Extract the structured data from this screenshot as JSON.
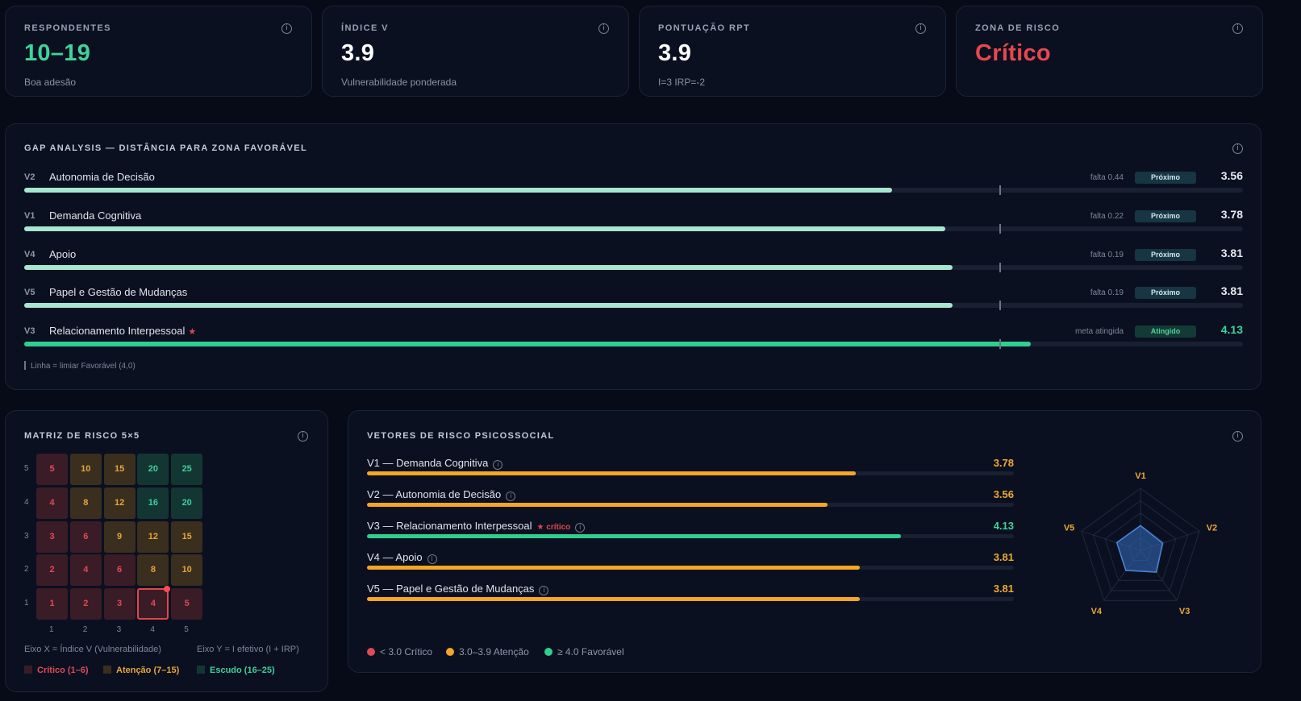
{
  "kpis": [
    {
      "label": "RESPONDENTES",
      "value": "10–19",
      "sub": "Boa adesão",
      "color": "#3fd39a"
    },
    {
      "label": "ÍNDICE V",
      "value": "3.9",
      "sub": "Vulnerabilidade ponderada",
      "color": "#ffffff"
    },
    {
      "label": "PONTUAÇÃO RPT",
      "value": "3.9",
      "sub": "I=3 IRP=-2",
      "color": "#ffffff"
    },
    {
      "label": "ZONA DE RISCO",
      "value": "Crítico",
      "sub": "",
      "color": "#e8474f"
    }
  ],
  "info_icon_glyph": "i",
  "gap": {
    "title": "GAP ANALYSIS — DISTÂNCIA PARA ZONA FAVORÁVEL",
    "threshold": 4.0,
    "max": 5.0,
    "rows": [
      {
        "code": "V2",
        "name": "Autonomia de Decisão",
        "critical": false,
        "miss": "falta 0.44",
        "badge": "Próximo",
        "score": "3.56",
        "value": 3.56,
        "ok": false
      },
      {
        "code": "V1",
        "name": "Demanda Cognitiva",
        "critical": false,
        "miss": "falta 0.22",
        "badge": "Próximo",
        "score": "3.78",
        "value": 3.78,
        "ok": false
      },
      {
        "code": "V4",
        "name": "Apoio",
        "critical": false,
        "miss": "falta 0.19",
        "badge": "Próximo",
        "score": "3.81",
        "value": 3.81,
        "ok": false
      },
      {
        "code": "V5",
        "name": "Papel e Gestão de Mudanças",
        "critical": false,
        "miss": "falta 0.19",
        "badge": "Próximo",
        "score": "3.81",
        "value": 3.81,
        "ok": false
      },
      {
        "code": "V3",
        "name": "Relacionamento Interpessoal",
        "critical": true,
        "miss": "meta atingida",
        "badge": "Atingido",
        "score": "4.13",
        "value": 4.13,
        "ok": true
      }
    ],
    "star": "★",
    "footnote": "Linha = limiar Favorável (4,0)"
  },
  "matrix": {
    "title": "MATRIZ DE RISCO 5×5",
    "selected": {
      "x": 4,
      "y": 1
    },
    "x_ticks": [
      "1",
      "2",
      "3",
      "4",
      "5"
    ],
    "y_ticks": [
      "5",
      "4",
      "3",
      "2",
      "1"
    ],
    "x_axis_label": "Eixo X = Índice V (Vulnerabilidade)",
    "y_axis_label": "Eixo Y = I efetivo (I + IRP)",
    "legend": [
      {
        "label": "Crítico (1–6)",
        "color": "#e04a54",
        "swatch": "#3a1c26"
      },
      {
        "label": "Atenção (7–15)",
        "color": "#e6a63a",
        "swatch": "#3a2e1e"
      },
      {
        "label": "Escudo (16–25)",
        "color": "#3fcf9a",
        "swatch": "#143633"
      }
    ]
  },
  "vectors": {
    "title": "VETORES DE RISCO PSICOSSOCIAL",
    "max": 5.0,
    "rows": [
      {
        "name": "V1 — Demanda Cognitiva",
        "crit_label": "",
        "score": "3.78",
        "value": 3.78,
        "ok": false
      },
      {
        "name": "V2 — Autonomia de Decisão",
        "crit_label": "",
        "score": "3.56",
        "value": 3.56,
        "ok": false
      },
      {
        "name": "V3 — Relacionamento Interpessoal",
        "crit_label": "★ crítico",
        "score": "4.13",
        "value": 4.13,
        "ok": true
      },
      {
        "name": "V4 — Apoio",
        "crit_label": "",
        "score": "3.81",
        "value": 3.81,
        "ok": false
      },
      {
        "name": "V5 — Papel e Gestão de Mudanças",
        "crit_label": "",
        "score": "3.81",
        "value": 3.81,
        "ok": false
      }
    ],
    "legend": [
      {
        "label": "< 3.0 Crítico",
        "color": "#e04a54"
      },
      {
        "label": "3.0–3.9 Atenção",
        "color": "#f5a623"
      },
      {
        "label": "≥ 4.0 Favorável",
        "color": "#2fcf8f"
      }
    ],
    "radar": {
      "axes": [
        "V1",
        "V2",
        "V3",
        "V4",
        "V5"
      ],
      "values": [
        3.78,
        3.56,
        4.13,
        3.81,
        3.81
      ],
      "max": 5.0,
      "label_color": "#f0a92e",
      "fill_color": "#2f5fa8",
      "stroke_color": "#4a86d8"
    }
  }
}
